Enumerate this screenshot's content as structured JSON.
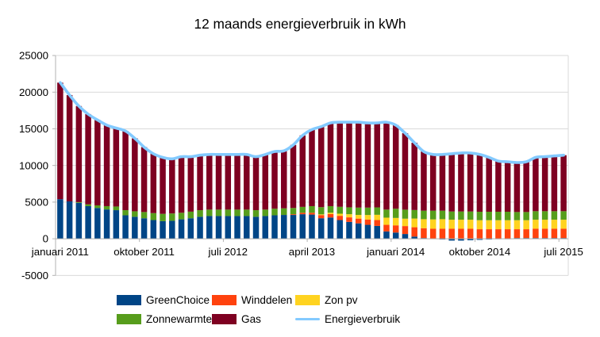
{
  "chart_data": {
    "type": "bar",
    "variant": "stacked-bars-with-line-overlay",
    "title": "12 maands energieverbruik in kWh",
    "grid": "horizontal",
    "legend_position": "bottom",
    "ylim": [
      -5000,
      25000
    ],
    "y_ticks": [
      -5000,
      0,
      5000,
      10000,
      15000,
      20000,
      25000
    ],
    "x_tick_labels": [
      {
        "index": 0,
        "label": "januari 2011"
      },
      {
        "index": 9,
        "label": "oktober 2011"
      },
      {
        "index": 18,
        "label": "juli 2012"
      },
      {
        "index": 27,
        "label": "april 2013"
      },
      {
        "index": 36,
        "label": "januari 2014"
      },
      {
        "index": 45,
        "label": "oktober 2014"
      },
      {
        "index": 54,
        "label": "juli 2015"
      }
    ],
    "months": [
      "2011-01",
      "2011-02",
      "2011-03",
      "2011-04",
      "2011-05",
      "2011-06",
      "2011-07",
      "2011-08",
      "2011-09",
      "2011-10",
      "2011-11",
      "2011-12",
      "2012-01",
      "2012-02",
      "2012-03",
      "2012-04",
      "2012-05",
      "2012-06",
      "2012-07",
      "2012-08",
      "2012-09",
      "2012-10",
      "2012-11",
      "2012-12",
      "2013-01",
      "2013-02",
      "2013-03",
      "2013-04",
      "2013-05",
      "2013-06",
      "2013-07",
      "2013-08",
      "2013-09",
      "2013-10",
      "2013-11",
      "2013-12",
      "2014-01",
      "2014-02",
      "2014-03",
      "2014-04",
      "2014-05",
      "2014-06",
      "2014-07",
      "2014-08",
      "2014-09",
      "2014-10",
      "2014-11",
      "2014-12",
      "2015-01",
      "2015-02",
      "2015-03",
      "2015-04",
      "2015-05",
      "2015-06",
      "2015-07"
    ],
    "series": [
      {
        "name": "GreenChoice",
        "color": "#004586",
        "values": [
          5400,
          5100,
          4900,
          4450,
          4200,
          4000,
          3900,
          3200,
          3000,
          2800,
          2550,
          2400,
          2450,
          2650,
          2800,
          3000,
          3100,
          3100,
          3100,
          3100,
          3100,
          3000,
          3100,
          3200,
          3250,
          3250,
          3350,
          3300,
          2800,
          2900,
          2550,
          2300,
          2100,
          1900,
          1750,
          1000,
          850,
          650,
          300,
          100,
          0,
          -100,
          -250,
          -250,
          -200,
          -150,
          -100,
          -50,
          -50,
          100,
          100,
          100,
          100,
          100,
          100
        ]
      },
      {
        "name": "Winddelen",
        "color": "#FF420E",
        "values": [
          0,
          0,
          0,
          0,
          0,
          0,
          0,
          0,
          0,
          0,
          0,
          0,
          0,
          0,
          0,
          0,
          0,
          0,
          0,
          0,
          0,
          0,
          0,
          0,
          0,
          100,
          200,
          250,
          430,
          470,
          580,
          620,
          650,
          720,
          800,
          900,
          980,
          1080,
          1270,
          1340,
          1370,
          1370,
          1370,
          1370,
          1370,
          1300,
          1300,
          1300,
          1300,
          1200,
          1200,
          1270,
          1270,
          1270,
          1270
        ]
      },
      {
        "name": "Zon pv",
        "color": "#FFD320",
        "values": [
          0,
          0,
          0,
          0,
          0,
          0,
          0,
          0,
          0,
          0,
          0,
          0,
          0,
          0,
          0,
          0,
          0,
          0,
          0,
          0,
          0,
          0,
          0,
          0,
          0,
          0,
          0,
          0,
          100,
          180,
          290,
          430,
          500,
          620,
          720,
          980,
          1010,
          1010,
          1190,
          1230,
          1270,
          1300,
          1230,
          1230,
          1230,
          1230,
          1230,
          1230,
          1230,
          1230,
          1230,
          1230,
          1230,
          1230,
          1230
        ]
      },
      {
        "name": "Zonnewarmte",
        "color": "#579D1C",
        "values": [
          0,
          0,
          100,
          250,
          350,
          450,
          500,
          700,
          750,
          850,
          950,
          1000,
          1000,
          900,
          900,
          900,
          880,
          880,
          880,
          880,
          880,
          900,
          880,
          900,
          900,
          850,
          800,
          900,
          980,
          900,
          940,
          940,
          1000,
          1010,
          1010,
          1100,
          1260,
          1230,
          1160,
          1160,
          1190,
          1160,
          1120,
          1120,
          1120,
          1160,
          1160,
          1160,
          1160,
          1120,
          1120,
          1160,
          1160,
          1160,
          1160
        ]
      },
      {
        "name": "Gas",
        "color": "#7E0021",
        "values": [
          15900,
          14500,
          13100,
          12300,
          11650,
          11050,
          10700,
          10800,
          9950,
          8850,
          8100,
          7700,
          7450,
          7650,
          7500,
          7500,
          7520,
          7520,
          7520,
          7520,
          7520,
          7300,
          7520,
          7800,
          7850,
          8600,
          9750,
          10450,
          10990,
          11350,
          11540,
          11610,
          11650,
          11550,
          11520,
          11920,
          11400,
          10430,
          9180,
          8070,
          7670,
          7670,
          7880,
          7980,
          7980,
          7810,
          7410,
          6910,
          6810,
          6750,
          6850,
          7340,
          7440,
          7540,
          7640
        ]
      }
    ],
    "line_series": {
      "name": "Energieverbruik",
      "color": "#83CAFF",
      "values": [
        21300,
        19600,
        18100,
        17000,
        16200,
        15500,
        15100,
        14700,
        13700,
        12500,
        11600,
        11100,
        10900,
        11200,
        11200,
        11400,
        11500,
        11500,
        11500,
        11500,
        11500,
        11200,
        11500,
        11900,
        12000,
        12800,
        14100,
        14900,
        15300,
        15800,
        15900,
        15900,
        15900,
        15800,
        15800,
        15900,
        15500,
        14400,
        13100,
        11900,
        11500,
        11500,
        11600,
        11700,
        11700,
        11500,
        11100,
        10600,
        10500,
        10400,
        10500,
        11100,
        11200,
        11300,
        11400
      ]
    }
  },
  "style_colors": {
    "gridline": "#d9d9d9",
    "axis": "#b3b3b3",
    "text": "#000000",
    "background": "#ffffff"
  }
}
